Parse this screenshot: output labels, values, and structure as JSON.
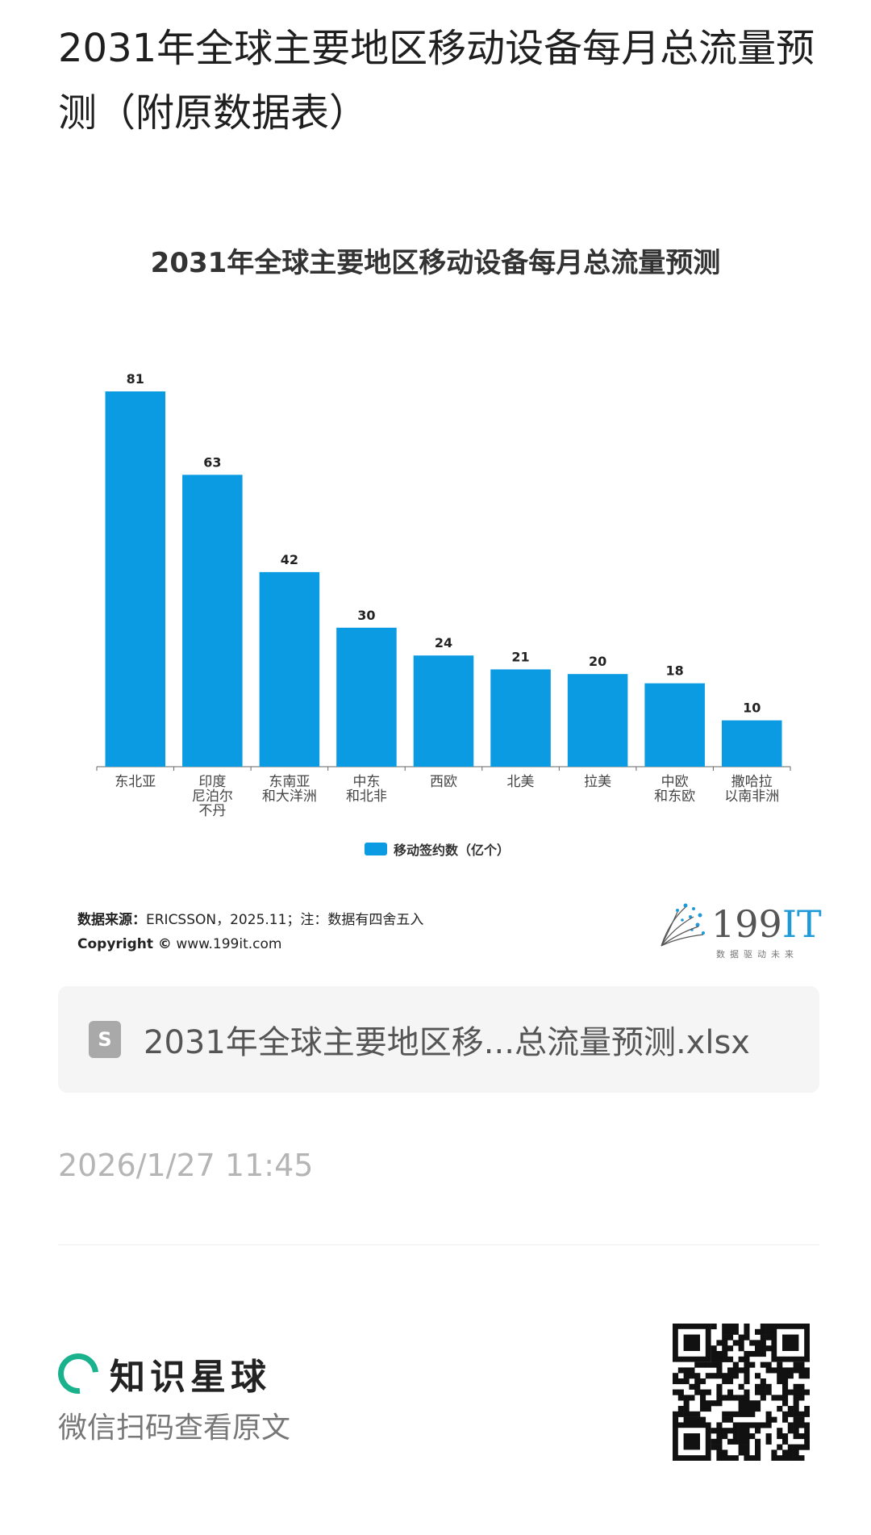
{
  "page": {
    "title": "2031年全球主要地区移动设备每月总流量预测（附原数据表）"
  },
  "chart_data": {
    "type": "bar",
    "title": "2031年全球主要地区移动设备每月总流量预测",
    "categories": [
      "东北亚",
      "印度\n尼泊尔\n不丹",
      "东南亚\n和大洋洲",
      "中东\n和北非",
      "西欧",
      "北美",
      "拉美",
      "中欧\n和东欧",
      "撒哈拉\n以南非洲"
    ],
    "series": [
      {
        "name": "移动签约数（亿个）",
        "values": [
          81,
          63,
          42,
          30,
          24,
          21,
          20,
          18,
          10
        ],
        "color": "#0a9be3"
      }
    ],
    "ylim": [
      0,
      81
    ],
    "grid": false,
    "legend_position": "bottom",
    "data_labels": true
  },
  "source": {
    "label": "数据来源：",
    "text": "ERICSSON，2025.11；注：数据有四舍五入",
    "copyright_label": "Copyright ©",
    "copyright_url": "www.199it.com"
  },
  "brand_logo": {
    "name_prefix": "199",
    "name_suffix": "IT",
    "slogan": "数据驱动未来"
  },
  "attachment": {
    "icon": "spreadsheet-file-icon",
    "icon_glyph": "S",
    "filename": "2031年全球主要地区移...总流量预测.xlsx"
  },
  "post": {
    "timestamp": "2026/1/27 11:45"
  },
  "footer": {
    "brand_name": "知识星球",
    "caption": "微信扫码查看原文",
    "brand_color": "#19b28c"
  }
}
